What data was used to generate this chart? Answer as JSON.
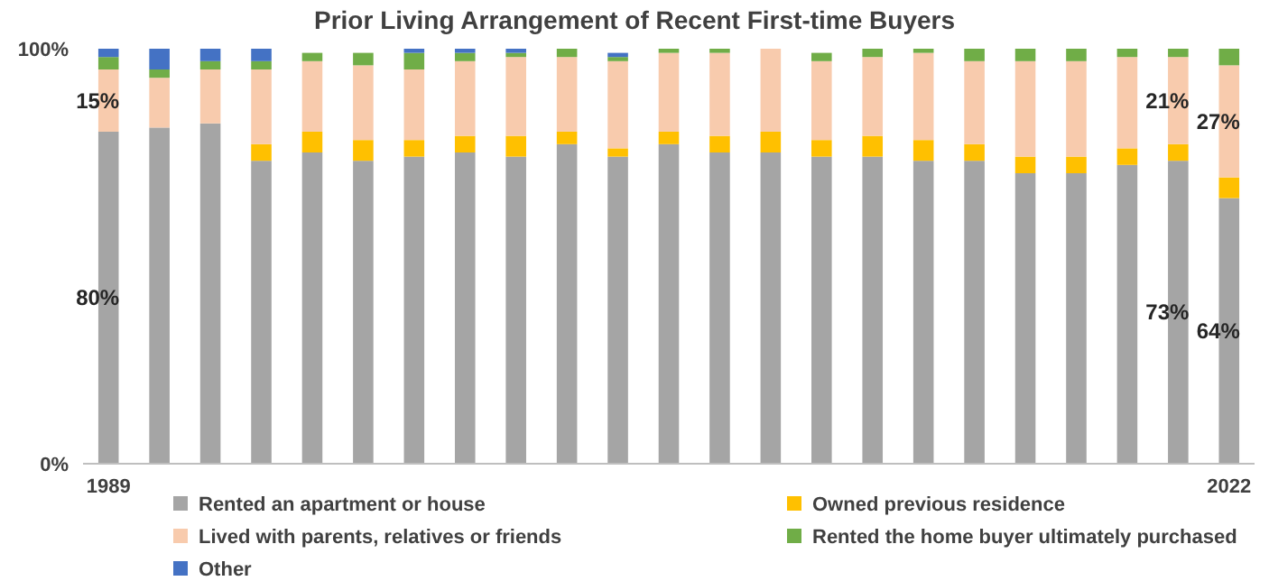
{
  "chart_data": {
    "type": "bar",
    "title": "Prior Living Arrangement of Recent First-time Buyers",
    "stacked": true,
    "categories": [
      "1989",
      null,
      null,
      null,
      null,
      null,
      null,
      null,
      null,
      null,
      null,
      null,
      null,
      null,
      null,
      null,
      null,
      null,
      null,
      null,
      null,
      null,
      "2022"
    ],
    "series": [
      {
        "name": "Rented an apartment or house",
        "color": "#a5a5a5",
        "values": [
          80,
          81,
          82,
          73,
          75,
          73,
          74,
          75,
          74,
          77,
          74,
          77,
          75,
          75,
          74,
          74,
          73,
          73,
          70,
          70,
          72,
          73,
          64
        ],
        "value_labels": [
          "80%",
          null,
          null,
          null,
          null,
          null,
          null,
          null,
          null,
          null,
          null,
          null,
          null,
          null,
          null,
          null,
          null,
          null,
          null,
          null,
          null,
          "73%",
          "64%"
        ]
      },
      {
        "name": "Owned previous residence",
        "color": "#ffc000",
        "values": [
          0,
          0,
          0,
          4,
          5,
          5,
          4,
          4,
          5,
          3,
          2,
          3,
          4,
          5,
          4,
          5,
          5,
          4,
          4,
          4,
          4,
          4,
          5
        ]
      },
      {
        "name": "Lived with parents, relatives or friends",
        "color": "#f8cbad",
        "values": [
          15,
          12,
          13,
          18,
          17,
          18,
          17,
          18,
          19,
          18,
          21,
          19,
          20,
          20,
          19,
          19,
          21,
          20,
          23,
          23,
          22,
          21,
          27
        ],
        "value_labels": [
          "15%",
          null,
          null,
          null,
          null,
          null,
          null,
          null,
          null,
          null,
          null,
          null,
          null,
          null,
          null,
          null,
          null,
          null,
          null,
          null,
          null,
          "21%",
          "27%"
        ]
      },
      {
        "name": "Rented the home buyer ultimately purchased",
        "color": "#70ad47",
        "values": [
          3,
          2,
          2,
          2,
          2,
          3,
          4,
          2,
          1,
          2,
          1,
          1,
          1,
          0,
          2,
          2,
          1,
          3,
          3,
          3,
          2,
          2,
          4
        ]
      },
      {
        "name": "Other",
        "color": "#4472c4",
        "values": [
          2,
          5,
          3,
          3,
          0,
          0,
          1,
          1,
          1,
          0,
          1,
          0,
          0,
          0,
          0,
          0,
          0,
          0,
          0,
          0,
          0,
          0,
          0
        ]
      }
    ],
    "ylim": [
      0,
      100
    ],
    "yticks": [
      {
        "value": 0,
        "label": "0%"
      },
      {
        "value": 100,
        "label": "100%"
      }
    ],
    "legend": "bottom"
  }
}
